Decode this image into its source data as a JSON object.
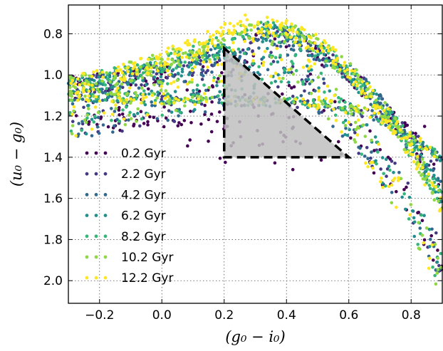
{
  "chart_data": {
    "type": "scatter",
    "xlabel": "(g₀ − i₀)",
    "ylabel": "(u₀ − g₀)",
    "xlim": [
      -0.3,
      0.9
    ],
    "ylim": [
      2.11,
      0.66
    ],
    "y_inverted": true,
    "grid": true,
    "grid_style": "dotted",
    "legend_position": "lower-left",
    "x_ticks": [
      -0.2,
      0.0,
      0.2,
      0.4,
      0.6,
      0.8
    ],
    "x_tick_labels": [
      "−0.2",
      "0.0",
      "0.2",
      "0.4",
      "0.6",
      "0.8"
    ],
    "y_ticks": [
      0.8,
      1.0,
      1.2,
      1.4,
      1.6,
      1.8,
      2.0
    ],
    "y_tick_labels": [
      "0.8",
      "1.0",
      "1.2",
      "1.4",
      "1.6",
      "1.8",
      "2.0"
    ],
    "series": [
      {
        "name": "0.2 Gyr",
        "color": "#440154"
      },
      {
        "name": "2.2 Gyr",
        "color": "#443a83"
      },
      {
        "name": "4.2 Gyr",
        "color": "#31688e"
      },
      {
        "name": "6.2 Gyr",
        "color": "#21908d"
      },
      {
        "name": "8.2 Gyr",
        "color": "#35b779"
      },
      {
        "name": "10.2 Gyr",
        "color": "#8fd744"
      },
      {
        "name": "12.2 Gyr",
        "color": "#fde725"
      }
    ],
    "selection_region": {
      "shape": "polygon",
      "vertices": [
        [
          0.2,
          0.87
        ],
        [
          0.2,
          1.4
        ],
        [
          0.6,
          1.4
        ]
      ],
      "fill": "#bfbfbf",
      "stroke": "#000000",
      "stroke_style": "dashed"
    }
  }
}
